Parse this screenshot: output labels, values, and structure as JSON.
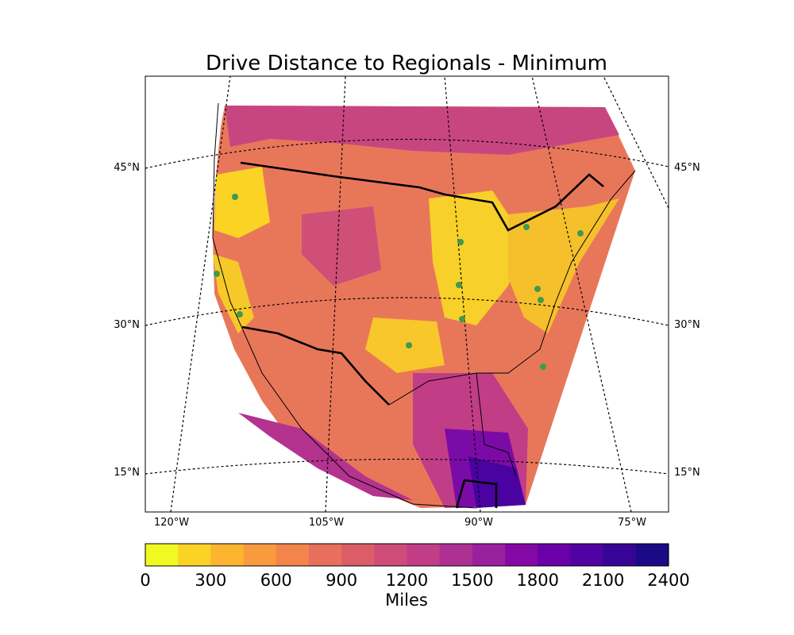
{
  "title": "Drive Distance to Regionals - Minimum",
  "lat_labels": [
    "45°N",
    "30°N",
    "15°N"
  ],
  "lon_labels": [
    "120°W",
    "105°W",
    "90°W",
    "75°W"
  ],
  "colorbar": {
    "label": "Miles",
    "min": 0,
    "max": 2400,
    "step": 150,
    "tick_labels": [
      "0",
      "300",
      "600",
      "900",
      "1200",
      "1500",
      "1800",
      "2100",
      "2400"
    ],
    "colors": [
      "#f0f921",
      "#fbd325",
      "#fdb42f",
      "#fa9a3f",
      "#f3844c",
      "#e86f5b",
      "#dc5d68",
      "#ce4c78",
      "#c13d86",
      "#ae2f92",
      "#9a219e",
      "#8408a6",
      "#6a00a8",
      "#5002a2",
      "#360595",
      "#1a0a86"
    ]
  },
  "chart_data": {
    "type": "heatmap",
    "title": "Drive Distance to Regionals - Minimum",
    "projection": "conic (North America)",
    "variable": "Miles",
    "value_range": [
      0,
      2400
    ],
    "regional_sites_approx": [
      {
        "lat": 47.6,
        "lon": -122.3
      },
      {
        "lat": 37.8,
        "lon": -122.3
      },
      {
        "lat": 34.0,
        "lon": -118.3
      },
      {
        "lat": 35.2,
        "lon": -97.4
      },
      {
        "lat": 41.9,
        "lon": -87.8
      },
      {
        "lat": 38.6,
        "lon": -90.2
      },
      {
        "lat": 35.0,
        "lon": -90.0
      },
      {
        "lat": 43.0,
        "lon": -79.0
      },
      {
        "lat": 42.3,
        "lon": -71.3
      },
      {
        "lat": 36.8,
        "lon": -79.5
      },
      {
        "lat": 35.8,
        "lon": -78.8
      },
      {
        "lat": 30.3,
        "lon": -81.7
      },
      {
        "lat": 40.7,
        "lon": -74.0
      }
    ]
  }
}
